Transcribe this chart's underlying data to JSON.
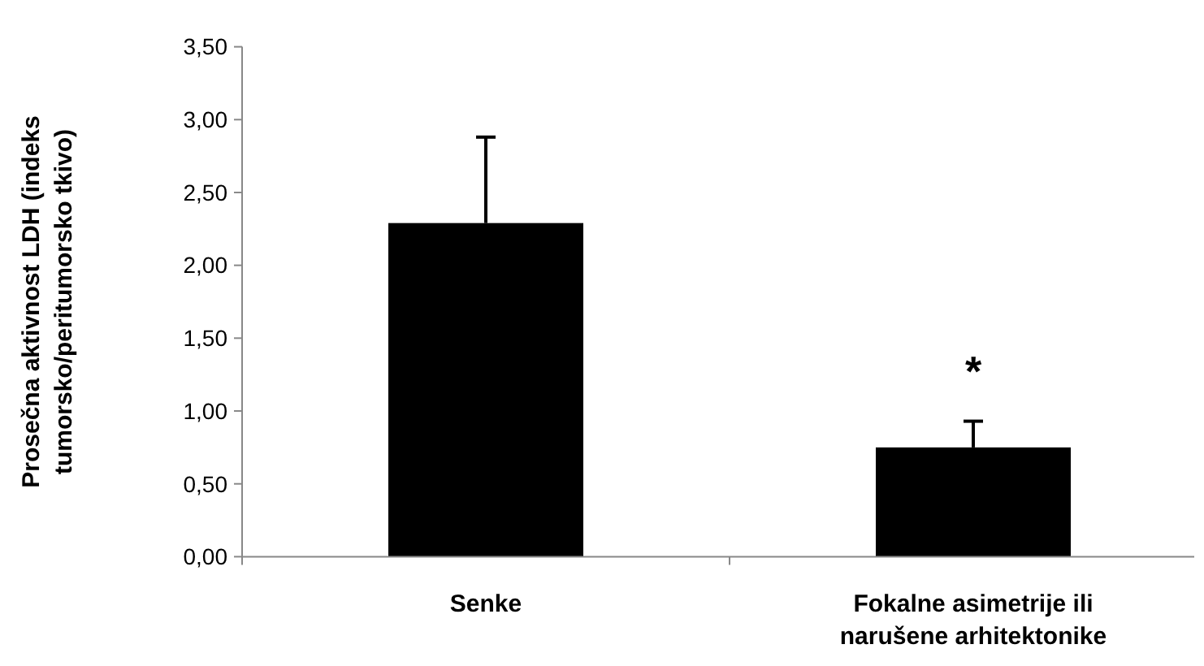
{
  "chart_data": {
    "type": "bar",
    "ylabel": "Prosečna aktivnost LDH (indeks\ntumorsko/peritumorsko tkivo)",
    "categories": [
      "Senke",
      "Fokalne asimetrije ili\nnarušene arhitektonike"
    ],
    "values": [
      2.29,
      0.75
    ],
    "color": "#000000",
    "errors": [
      [
        2.29,
        2.88
      ],
      [
        0.75,
        0.93
      ]
    ],
    "ylim": [
      0,
      3.5
    ],
    "yticks": [
      {
        "value": 0,
        "label": "0,00"
      },
      {
        "value": 0.5,
        "label": "0,50"
      },
      {
        "value": 1,
        "label": "1,00"
      },
      {
        "value": 1.5,
        "label": "1,50"
      },
      {
        "value": 2,
        "label": "2,00"
      },
      {
        "value": 2.5,
        "label": "2,50"
      },
      {
        "value": 3,
        "label": "3,00"
      },
      {
        "value": 3.5,
        "label": "3,50"
      }
    ],
    "annotations": [
      "*"
    ],
    "grid": false
  }
}
